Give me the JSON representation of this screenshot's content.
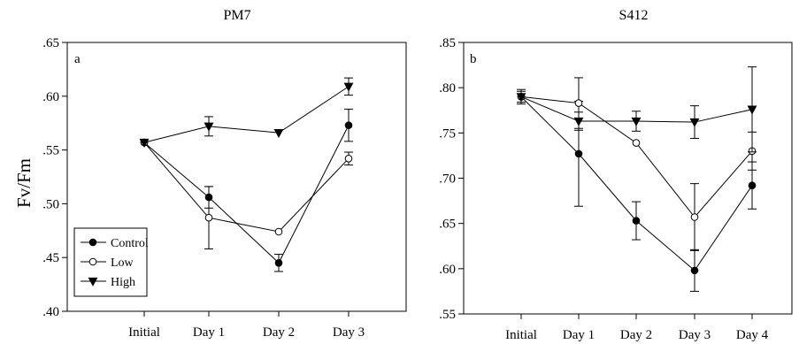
{
  "figure": {
    "ylabel": "Fv/Fm",
    "legend": {
      "placement": "bottom-left of panel a",
      "entries": [
        "Control",
        "Low",
        "High"
      ]
    }
  },
  "chart_data": [
    {
      "type": "line",
      "title": "PM7",
      "panel_label": "a",
      "xlabel": "",
      "ylabel": "Fv/Fm",
      "categories": [
        "Initial",
        "Day 1",
        "Day 2",
        "Day 3"
      ],
      "ylim": [
        0.4,
        0.65
      ],
      "yticks": [
        0.4,
        0.45,
        0.5,
        0.55,
        0.6,
        0.65
      ],
      "ytick_labels": [
        ".40",
        ".45",
        ".50",
        ".55",
        ".60",
        ".65"
      ],
      "grid": false,
      "series": [
        {
          "name": "Control",
          "marker": "filled-circle",
          "values": [
            0.557,
            0.506,
            0.445,
            0.573
          ],
          "err": [
            0,
            0.01,
            0.008,
            0.015
          ]
        },
        {
          "name": "Low",
          "marker": "open-circle",
          "values": [
            0.557,
            0.487,
            0.474,
            0.542
          ],
          "err": [
            0,
            0.029,
            0,
            0.006
          ]
        },
        {
          "name": "High",
          "marker": "filled-triangle-down",
          "values": [
            0.557,
            0.572,
            0.566,
            0.609
          ],
          "err": [
            0,
            0.009,
            0,
            0.008
          ]
        }
      ]
    },
    {
      "type": "line",
      "title": "S412",
      "panel_label": "b",
      "xlabel": "",
      "ylabel": "",
      "categories": [
        "Initial",
        "Day 1",
        "Day 2",
        "Day 3",
        "Day 4"
      ],
      "ylim": [
        0.55,
        0.85
      ],
      "yticks": [
        0.55,
        0.6,
        0.65,
        0.7,
        0.75,
        0.8,
        0.85
      ],
      "ytick_labels": [
        ".55",
        ".60",
        ".65",
        ".70",
        ".75",
        ".80",
        ".85"
      ],
      "grid": false,
      "series": [
        {
          "name": "Control",
          "marker": "filled-circle",
          "values": [
            0.79,
            0.727,
            0.653,
            0.598,
            0.692
          ],
          "err": [
            0.008,
            0.058,
            0.021,
            0.023,
            0.026
          ]
        },
        {
          "name": "Low",
          "marker": "open-circle",
          "values": [
            0.79,
            0.783,
            0.739,
            0.657,
            0.73
          ],
          "err": [
            0.006,
            0.028,
            0,
            0.037,
            0.021
          ]
        },
        {
          "name": "High",
          "marker": "filled-triangle-down",
          "values": [
            0.79,
            0.763,
            0.763,
            0.762,
            0.776
          ],
          "err": [
            0,
            0.01,
            0.011,
            0.018,
            0.047
          ]
        }
      ]
    }
  ]
}
